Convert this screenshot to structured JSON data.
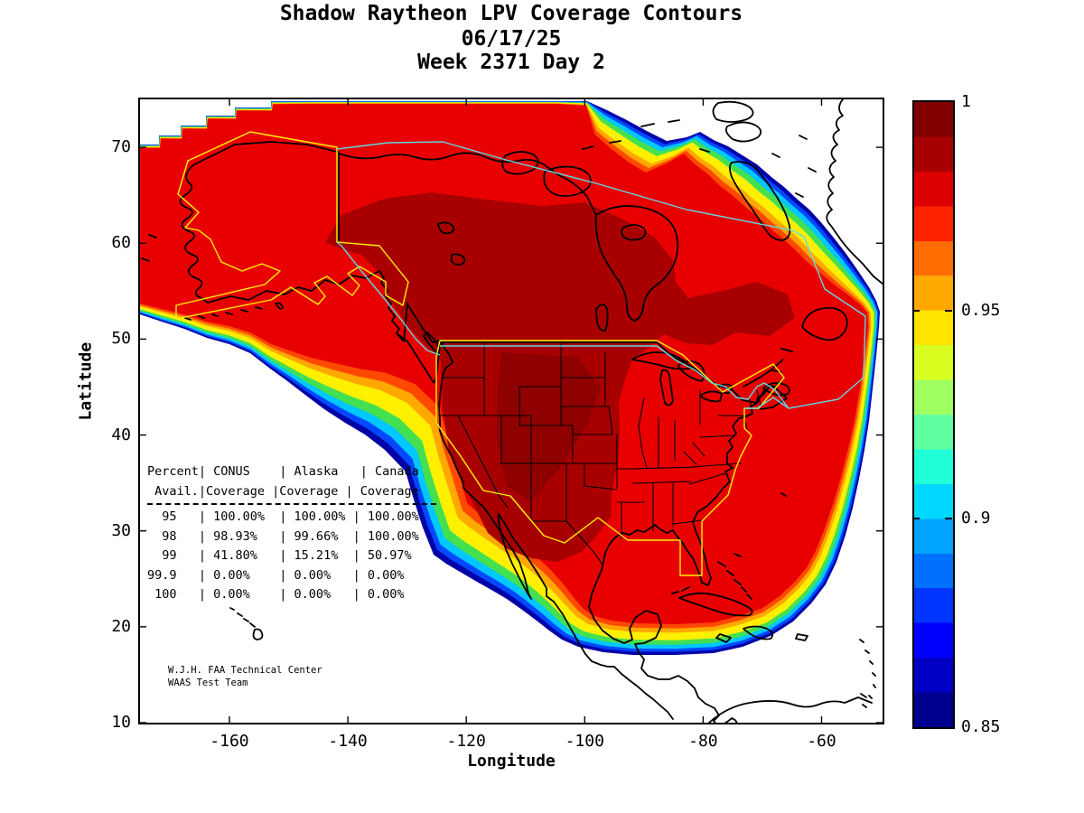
{
  "title": {
    "line1": "Shadow Raytheon LPV Coverage Contours",
    "line2": "06/17/25",
    "line3": "Week 2371 Day 2"
  },
  "axes": {
    "x_label": "Longitude",
    "y_label": "Latitude",
    "x_tick_labels": [
      "-160",
      "-140",
      "-120",
      "-100",
      "-80",
      "-60"
    ],
    "x_tick_values": [
      -160,
      -140,
      -120,
      -100,
      -80,
      -60
    ],
    "y_tick_labels": [
      "70",
      "60",
      "50",
      "40",
      "30",
      "20",
      "10"
    ],
    "y_tick_values": [
      70,
      60,
      50,
      40,
      30,
      20,
      10
    ],
    "xlim": [
      -175.1,
      -49.7
    ],
    "ylim": [
      10,
      75
    ]
  },
  "colorbar": {
    "min": 0.85,
    "max": 1,
    "tick_labels": [
      "1",
      "0.95",
      "0.9",
      "0.85"
    ],
    "tick_values": [
      1,
      0.95,
      0.9,
      0.85
    ],
    "colors_bottom_to_top": [
      "#00008F",
      "#0000C4",
      "#0000FF",
      "#0034FF",
      "#0070FF",
      "#00A4FF",
      "#00D8FF",
      "#20FFD8",
      "#60FFA0",
      "#A0FF60",
      "#D8FF20",
      "#FFE400",
      "#FFA800",
      "#FF6C00",
      "#FF2400",
      "#DC0000",
      "#A80000",
      "#800000"
    ]
  },
  "stats_table": {
    "header_lines": [
      "Percent| CONUS    | Alaska   | Canada",
      " Avail.|Coverage |Coverage | Coverage"
    ],
    "columns": [
      "Percent Avail.",
      "CONUS Coverage",
      "Alaska Coverage",
      "Canada Coverage"
    ],
    "rows": [
      [
        "95",
        "100.00%",
        "100.00%",
        "100.00%"
      ],
      [
        "98",
        "98.93%",
        "99.66%",
        "100.00%"
      ],
      [
        "99",
        "41.80%",
        "15.21%",
        "50.97%"
      ],
      [
        "99.9",
        "0.00%",
        "0.00%",
        "0.00%"
      ],
      [
        "100",
        "0.00%",
        "0.00%",
        "0.00%"
      ]
    ]
  },
  "credit": {
    "line1": "W.J.H. FAA Technical Center",
    "line2": "WAAS Test Team"
  },
  "palette": {
    "coverage_bands": {
      "navy": "#0000A8",
      "blue": "#0048FF",
      "cyan": "#00C8FF",
      "green": "#44E050",
      "yellow": "#FFF000",
      "orange": "#FFA800",
      "orange_red": "#FF4800",
      "red": "#E80000"
    },
    "high_coverage": "#A80000",
    "highest_coverage": "#8F0000",
    "coastline": "#000000",
    "state_lines": "#000000",
    "conus_alaska_boundary": "#FFF200",
    "canada_boundary": "#62D9E2",
    "background": "#FFFFFF"
  },
  "chart_data": {
    "type": "heatmap",
    "subtype": "filled-contour coverage map of North America",
    "title": "Shadow Raytheon LPV Coverage Contours",
    "subtitle_date": "06/17/25",
    "subtitle_week": "Week 2371 Day 2",
    "xlabel": "Longitude",
    "ylabel": "Latitude",
    "xlim": [
      -175.1,
      -49.7
    ],
    "ylim": [
      10,
      75
    ],
    "x_ticks": [
      -160,
      -140,
      -120,
      -100,
      -80,
      -60
    ],
    "y_ticks": [
      70,
      60,
      50,
      40,
      30,
      20,
      10
    ],
    "grid": false,
    "colorbar": {
      "min": 0.85,
      "max": 1,
      "ticks": [
        0.85,
        0.9,
        0.95,
        1
      ],
      "position": "right"
    },
    "contour_description": "LPV availability: dark red (~1.0) over CONUS and western/central Canada, red (~0.97-0.99) over most of North America, rainbow fringe (orange-yellow-green-cyan-blue) down to 0.85 along Pacific southwest edge, southern edge near 20N, Atlantic east edge, and Arctic northeast corner; white = below 0.85 / no coverage",
    "availability_table": {
      "columns": [
        "Percent Avail.",
        "CONUS Coverage",
        "Alaska Coverage",
        "Canada Coverage"
      ],
      "rows": [
        [
          "95",
          "100.00%",
          "100.00%",
          "100.00%"
        ],
        [
          "98",
          "98.93%",
          "99.66%",
          "100.00%"
        ],
        [
          "99",
          "41.80%",
          "15.21%",
          "50.97%"
        ],
        [
          "99.9",
          "0.00%",
          "0.00%",
          "0.00%"
        ],
        [
          "100",
          "0.00%",
          "0.00%",
          "0.00%"
        ]
      ]
    }
  }
}
